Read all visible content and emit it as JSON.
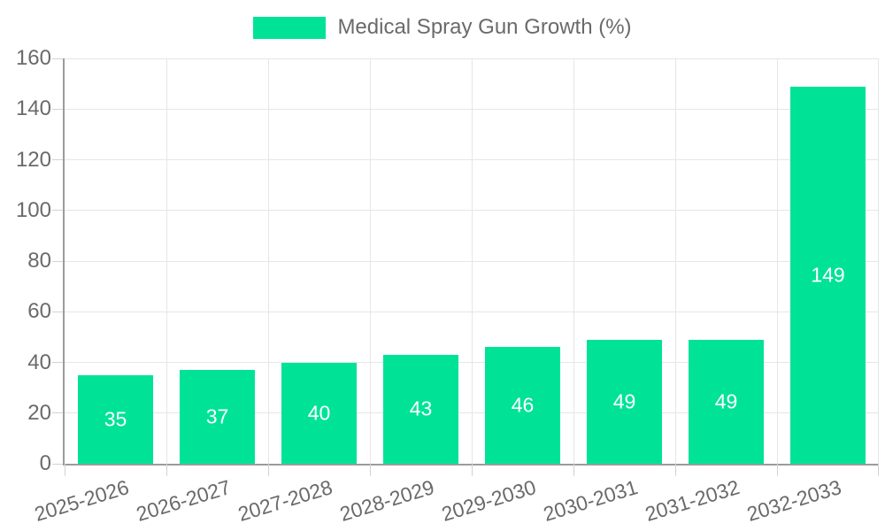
{
  "chart_data": {
    "type": "bar",
    "title": "Medical Spray Gun Growth (%)",
    "categories": [
      "2025-2026",
      "2026-2027",
      "2027-2028",
      "2028-2029",
      "2029-2030",
      "2030-2031",
      "2031-2032",
      "2032-2033"
    ],
    "values": [
      35,
      37,
      40,
      43,
      46,
      49,
      49,
      149
    ],
    "xlabel": "",
    "ylabel": "",
    "ylim": [
      0,
      160
    ],
    "y_ticks": [
      0,
      20,
      40,
      60,
      80,
      100,
      120,
      140,
      160
    ],
    "grid": "on",
    "legend_position": "top",
    "colors": {
      "bar": "#00E396",
      "value_label": "#FFFFFF",
      "axis_text": "#6A6A6A",
      "grid_line": "#E6E6E6",
      "tick_mark": "#D2D2D2",
      "axis_line": "#9C9C9C",
      "background": "#FFFFFF"
    }
  }
}
